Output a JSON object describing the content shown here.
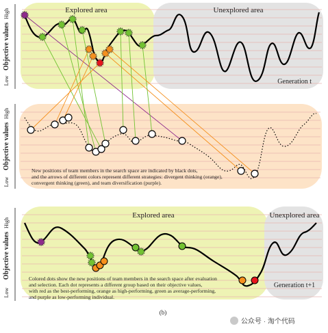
{
  "panel1": {
    "y_high": "High",
    "y_title": "Objective values",
    "y_low": "Low",
    "explored": "Explored area",
    "unexplored": "Unexplored area",
    "generation": "Generation  t"
  },
  "panel2": {
    "y_high": "High",
    "y_title": "Objective values",
    "y_low": "Low",
    "note_lines": [
      "New positions of team members in the search space are indicated by black dots,",
      "and the arrows of different colors represent different strategies: divergent thinking (orange),",
      "convergent thinking (green), and team diversification (purple)."
    ]
  },
  "panel3": {
    "y_high": "High",
    "y_title": "Objective values",
    "y_low": "Low",
    "explored": "Explored area",
    "unexplored": "Unexplored area",
    "generation": "Generation  t+1",
    "note_lines": [
      "Colored dots show the new positions of team members in the search space after evaluation",
      "and selection. Each dot represents a different group based on their objective values,",
      "with red as the best-performing, orange as high-performing, green as average-performing,",
      "and purple as low-performing individual."
    ]
  },
  "caption": "(b)",
  "watermark": "公众号 · 淘个代码",
  "colors": {
    "explored_fill": "#eef3b4",
    "unexplored_fill": "#e3e3e3",
    "panel2_fill": "#fde3c7",
    "best": "#e8141c",
    "high": "#f5901e",
    "average": "#72c232",
    "low": "#8e2a8c",
    "arrow_orange": "#f5901e",
    "arrow_green": "#72c232",
    "arrow_purple": "#8e2a8c"
  }
}
